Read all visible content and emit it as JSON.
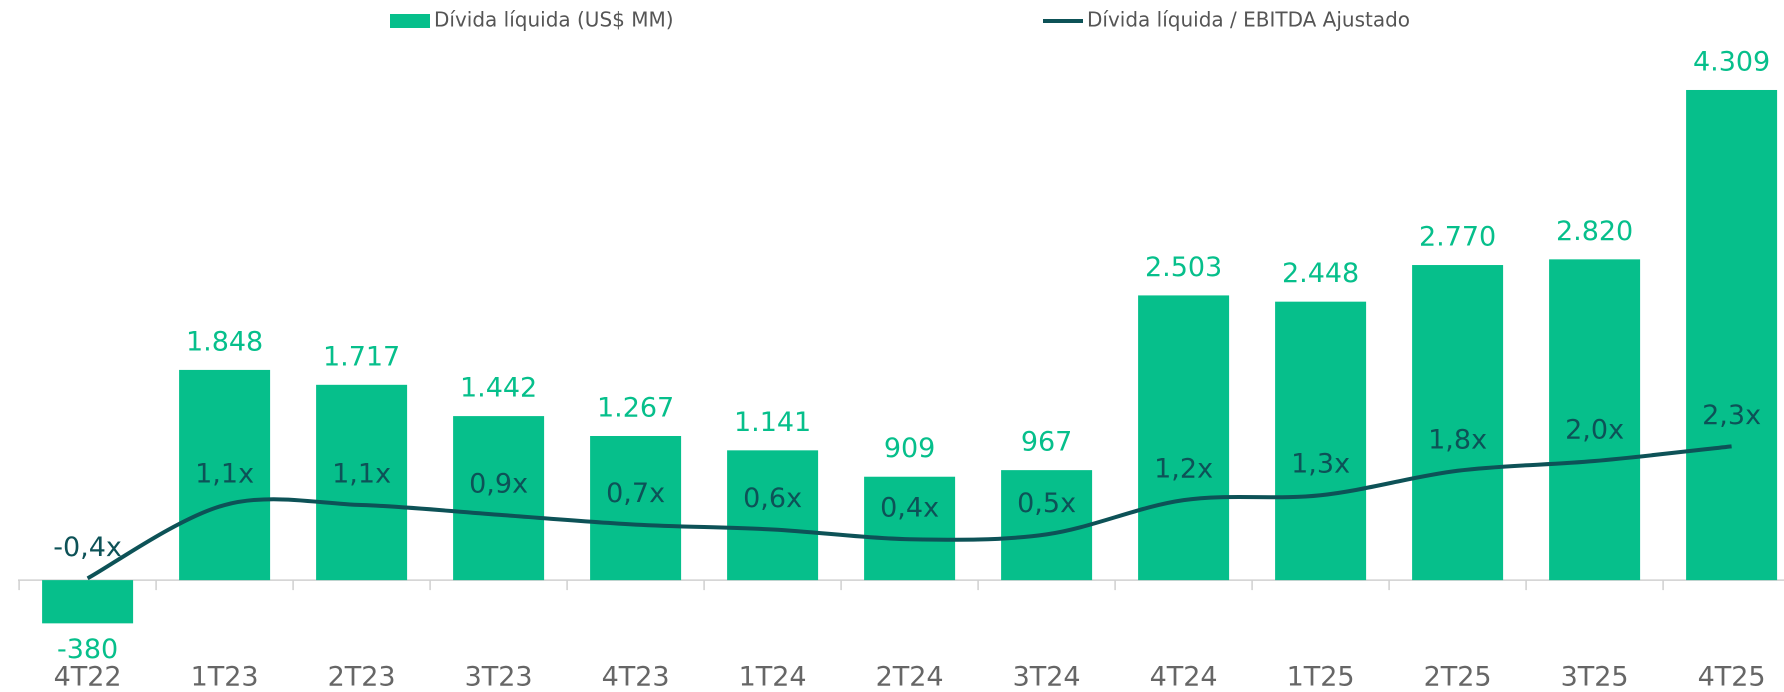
{
  "chart_data": {
    "type": "bar_line",
    "categories": [
      "4T22",
      "1T23",
      "2T23",
      "3T23",
      "4T23",
      "1T24",
      "2T24",
      "3T24",
      "4T24",
      "1T25",
      "2T25",
      "3T25",
      "4T25"
    ],
    "series": [
      {
        "name": "Dívida líquida (US$ MM)",
        "color": "#06bf8b",
        "type": "bar",
        "values": [
          -380,
          1848,
          1717,
          1442,
          1267,
          1141,
          909,
          967,
          2503,
          2448,
          2770,
          2820,
          4309
        ],
        "value_labels": [
          "-380",
          "1.848",
          "1.717",
          "1.442",
          "1.267",
          "1.141",
          "909",
          "967",
          "2.503",
          "2.448",
          "2.770",
          "2.820",
          "4.309"
        ]
      },
      {
        "name": "Dívida líquida / EBITDA Ajustado",
        "color": "#0d5257",
        "type": "line",
        "axis": "y2",
        "values": [
          -0.4,
          1.1,
          1.1,
          0.9,
          0.7,
          0.6,
          0.4,
          0.5,
          1.2,
          1.3,
          1.8,
          2.0,
          2.3
        ],
        "value_labels": [
          "-0,4x",
          "1,1x",
          "1,1x",
          "0,9x",
          "0,7x",
          "0,6x",
          "0,4x",
          "0,5x",
          "1,2x",
          "1,3x",
          "1,8x",
          "2,0x",
          "2,3x"
        ]
      }
    ],
    "ylim": [
      -500,
      4700
    ],
    "y2lim": [
      -1.6,
      10.5
    ],
    "legend": "top"
  }
}
